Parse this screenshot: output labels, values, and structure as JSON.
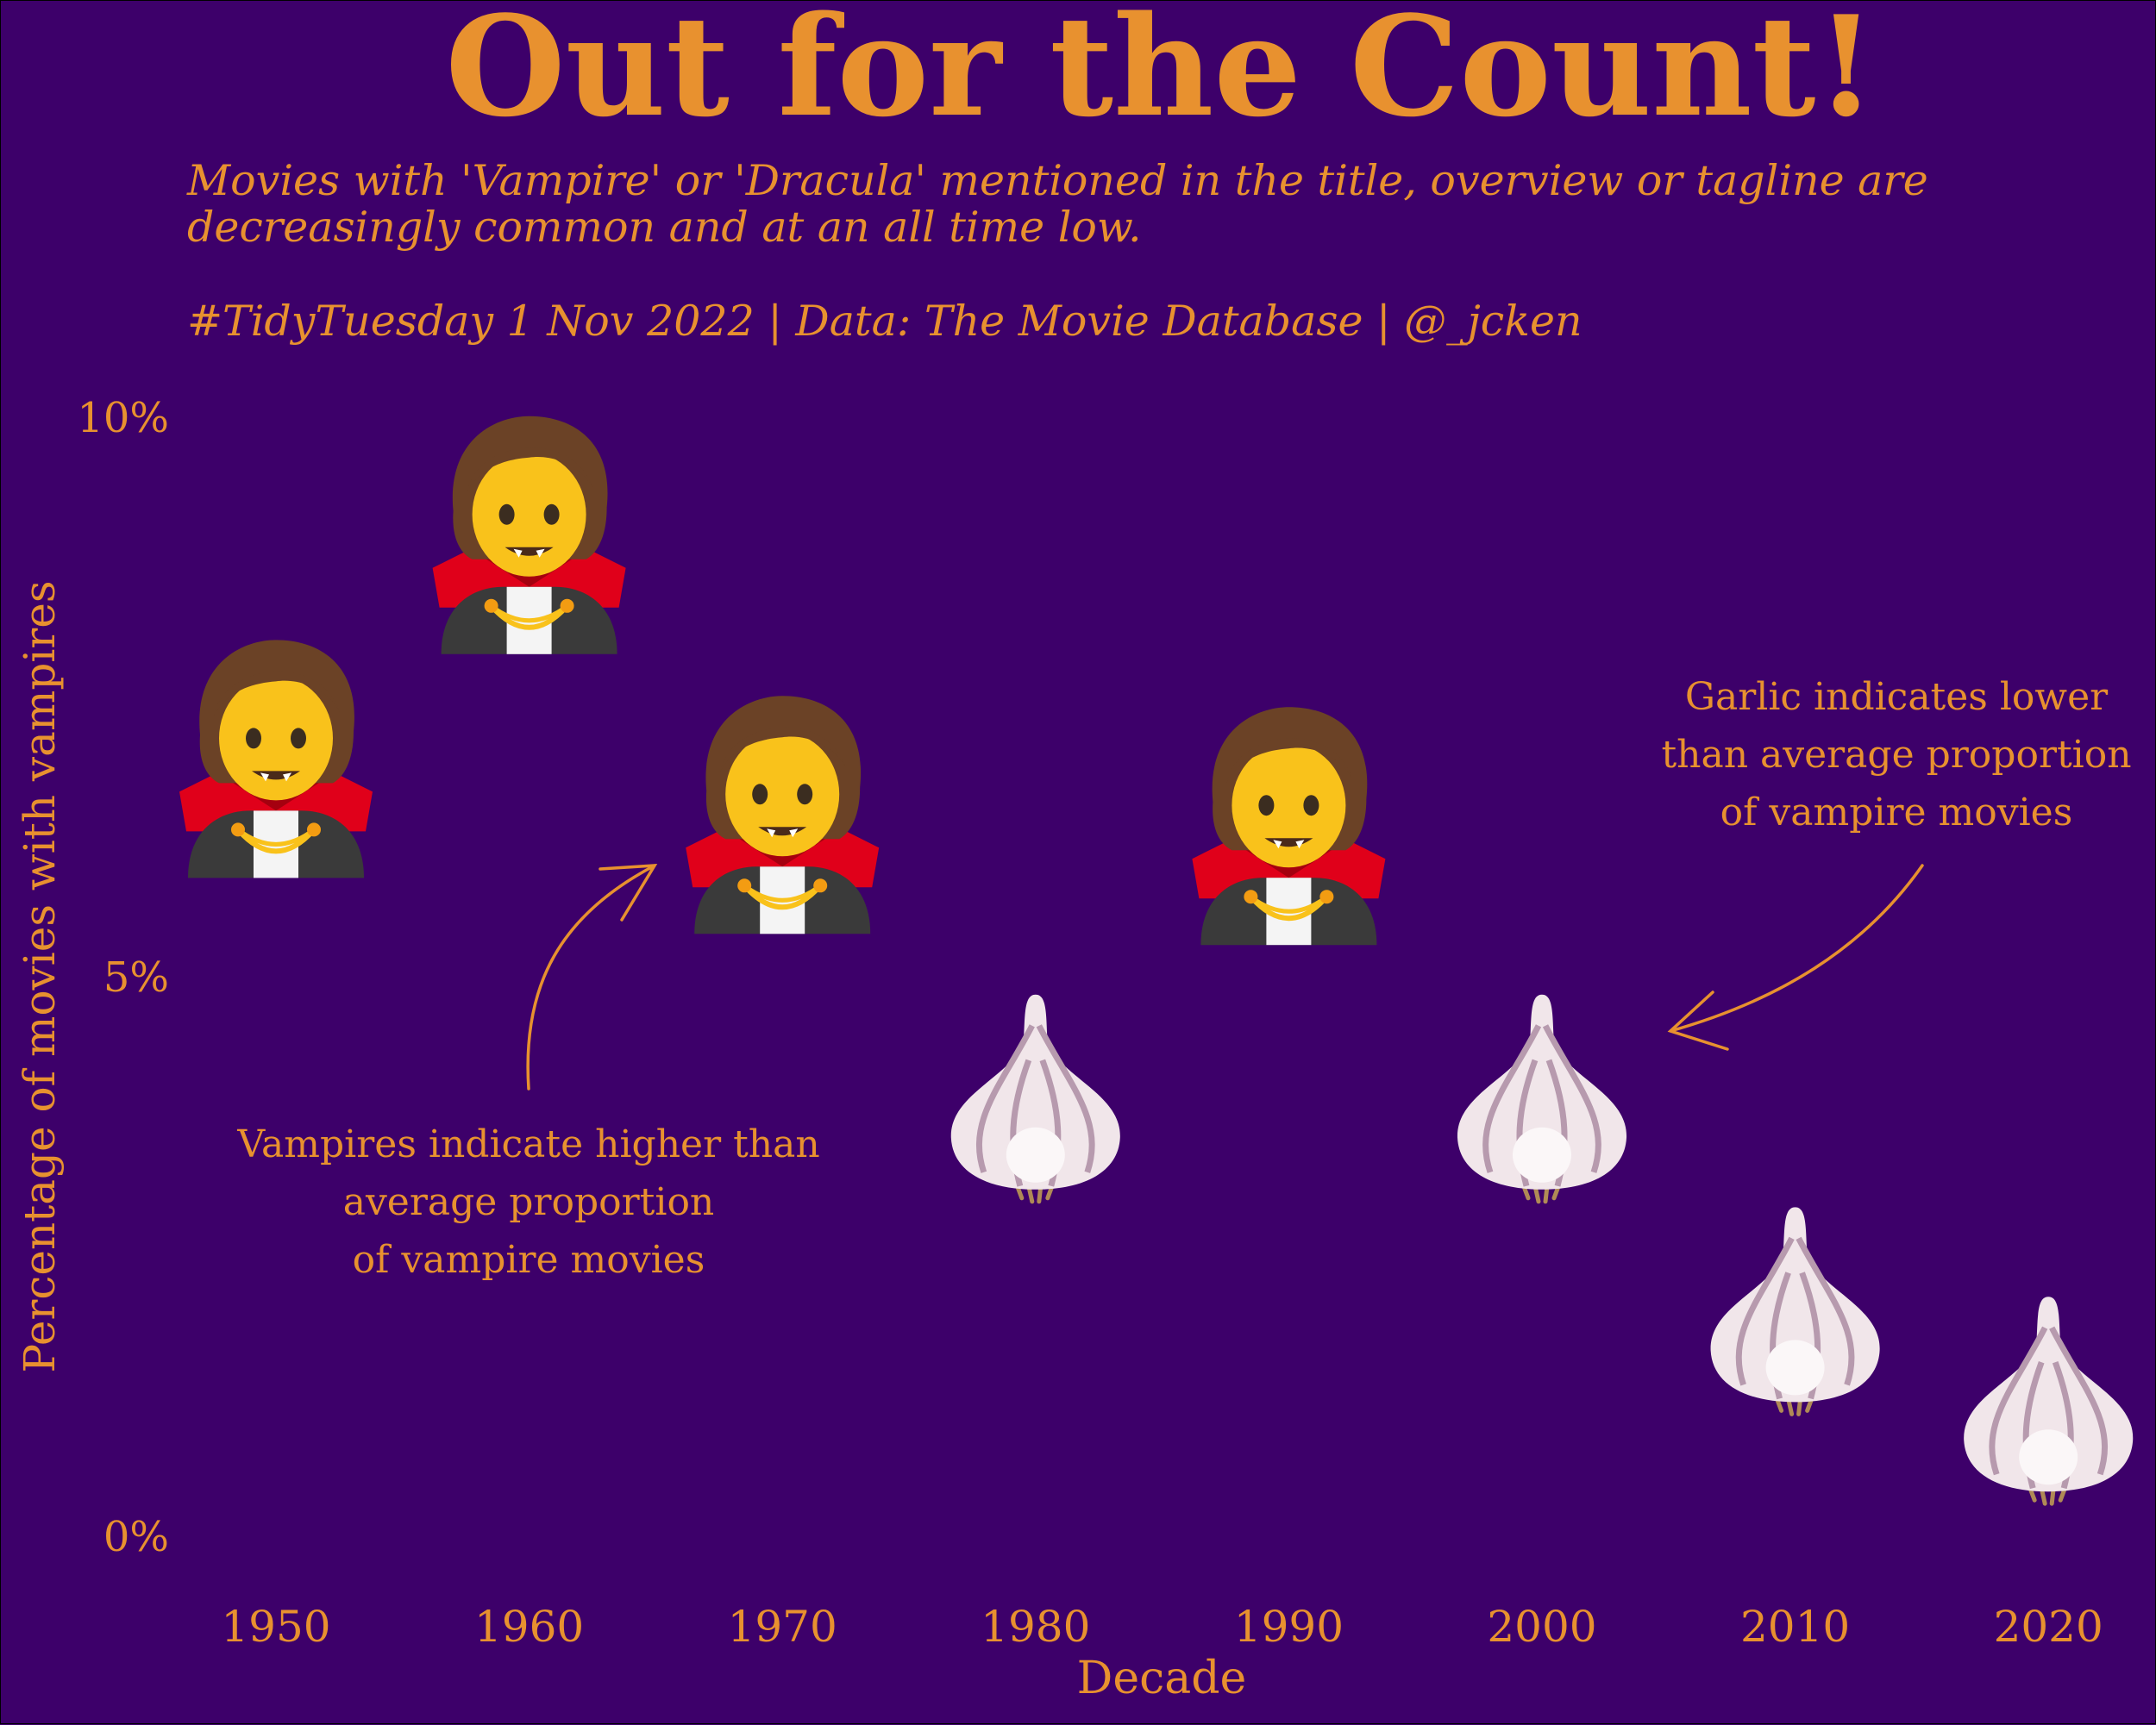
{
  "chart_data": {
    "type": "scatter",
    "title": "Out for the Count!",
    "subtitle": "Movies with 'Vampire' or 'Dracula' mentioned in the title, overview or tagline are decreasingly common and at an all time low.",
    "caption": "#TidyTuesday 1 Nov 2022 | Data: The Movie Database | @_jcken",
    "xlabel": "Decade",
    "ylabel": "Percentage of movies with vampires",
    "x": [
      1950,
      1960,
      1970,
      1980,
      1990,
      2000,
      2010,
      2020
    ],
    "x_tick_labels": [
      "1950",
      "1960",
      "1970",
      "1980",
      "1990",
      "2000",
      "2010",
      "2020"
    ],
    "y_ticks": [
      0,
      5,
      10
    ],
    "y_tick_labels": [
      "0%",
      "5%",
      "10%"
    ],
    "ylim": [
      0,
      10
    ],
    "grid": false,
    "series": [
      {
        "values": [
          6.8,
          8.8,
          6.3,
          3.8,
          6.2,
          3.8,
          1.9,
          1.1
        ],
        "markers": [
          "vampire",
          "vampire",
          "vampire",
          "garlic",
          "vampire",
          "garlic",
          "garlic",
          "garlic"
        ]
      }
    ],
    "annotations": [
      {
        "text": "Vampires indicate higher than\naverage proportion\nof vampire movies"
      },
      {
        "text": "Garlic indicates lower\nthan average proportion\nof vampire movies"
      }
    ]
  },
  "colors": {
    "background": "#3d006a",
    "text": "#e8912f",
    "cape": "#e0001a",
    "skin": "#f9c21b",
    "hair": "#6b4226",
    "garlic": "#f1e6ea"
  },
  "icons": {
    "above_average": "vampire-icon",
    "below_average": "garlic-icon"
  }
}
